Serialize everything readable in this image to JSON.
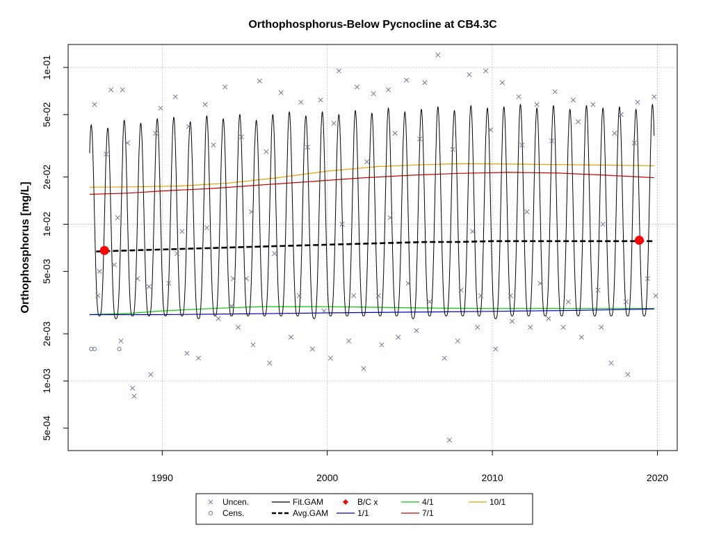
{
  "chart_data": {
    "type": "line",
    "title": "Orthophosphorus-Below Pycnocline at CB4.3C",
    "xlabel": "",
    "ylabel": "Orthophosphorus [mg/L]",
    "y_scale": "log10",
    "xlim": [
      1984.3,
      2021.2
    ],
    "ylim": [
      0.00036,
      0.14
    ],
    "x_ticks": [
      1990,
      2000,
      2010,
      2020
    ],
    "x_tick_labels": [
      "1990",
      "2000",
      "2010",
      "2020"
    ],
    "y_ticks": [
      0.0005,
      0.001,
      0.002,
      0.005,
      0.01,
      0.02,
      0.05,
      0.1
    ],
    "y_tick_labels": [
      "5e-04",
      "1e-03",
      "2e-03",
      "5e-03",
      "1e-02",
      "2e-02",
      "5e-02",
      "1e-01"
    ],
    "grid": true,
    "legend_position": "bottom",
    "legend": [
      {
        "label": "Uncen.",
        "symbol": "x",
        "color": "#6b7a99"
      },
      {
        "label": "Cens.",
        "symbol": "open-circle",
        "color": "#6b7a99"
      },
      {
        "label": "Fit.GAM",
        "symbol": "line",
        "color": "#000000"
      },
      {
        "label": "Avg.GAM",
        "symbol": "dashed-line",
        "color": "#000000"
      },
      {
        "label": "B/C x",
        "symbol": "diamond",
        "color": "#ff0000"
      },
      {
        "label": "1/1",
        "symbol": "line",
        "color": "#0000cc"
      },
      {
        "label": "4/1",
        "symbol": "line",
        "color": "#00cc00"
      },
      {
        "label": "7/1",
        "symbol": "line",
        "color": "#cc0000"
      },
      {
        "label": "10/1",
        "symbol": "line",
        "color": "#e69f00"
      }
    ],
    "series": {
      "fit_gam": {
        "years": [
          1985.6,
          2019.8
        ],
        "seasonal_peak": [
          0.043,
          0.041,
          0.046,
          0.044,
          0.047,
          0.048,
          0.045,
          0.049,
          0.047,
          0.05,
          0.046,
          0.05,
          0.052,
          0.049,
          0.052,
          0.05,
          0.053,
          0.051,
          0.055,
          0.052,
          0.054,
          0.056,
          0.053,
          0.057,
          0.055,
          0.056,
          0.058,
          0.055,
          0.057,
          0.054,
          0.057,
          0.055,
          0.056,
          0.054,
          0.058
        ],
        "seasonal_trough": [
          0.0026,
          0.0025,
          0.0026,
          0.0026,
          0.0026,
          0.0026,
          0.0025,
          0.0026,
          0.0026,
          0.0026,
          0.0026,
          0.0026,
          0.0026,
          0.0025,
          0.0026,
          0.0026,
          0.0026,
          0.0026,
          0.0026,
          0.0025,
          0.0026,
          0.0026,
          0.0026,
          0.0026,
          0.0025,
          0.0026,
          0.0026,
          0.0026,
          0.0026,
          0.0026,
          0.0026,
          0.0026,
          0.0026,
          0.0026,
          0.0026
        ]
      },
      "avg_gam": {
        "x": [
          1986,
          1988,
          1990,
          1992,
          1994,
          1996,
          1998,
          2000,
          2002,
          2004,
          2006,
          2008,
          2010,
          2012,
          2014,
          2016,
          2018,
          2019.8
        ],
        "y": [
          0.0067,
          0.0068,
          0.0069,
          0.007,
          0.0071,
          0.0072,
          0.0073,
          0.0074,
          0.0075,
          0.0076,
          0.0077,
          0.0077,
          0.0078,
          0.0078,
          0.0078,
          0.0078,
          0.0078,
          0.0078
        ]
      },
      "bc": {
        "x": [
          1986.5,
          2018.9
        ],
        "y": [
          0.0068,
          0.0079
        ]
      },
      "q1_1": {
        "x": [
          1985.6,
          1990,
          1995,
          2000,
          2005,
          2010,
          2015,
          2019.8
        ],
        "y": [
          0.00265,
          0.00265,
          0.00268,
          0.00272,
          0.00275,
          0.00278,
          0.00282,
          0.00288
        ]
      },
      "q4_1": {
        "x": [
          1985.6,
          1988,
          1990,
          1993,
          1996,
          2000,
          2003,
          2006,
          2010,
          2014,
          2017,
          2019.8
        ],
        "y": [
          0.00265,
          0.0027,
          0.0028,
          0.0029,
          0.00298,
          0.00298,
          0.00295,
          0.00292,
          0.0029,
          0.0029,
          0.0029,
          0.0029
        ]
      },
      "q7_1": {
        "x": [
          1985.6,
          1988,
          1990,
          1993,
          1996,
          1999,
          2002,
          2005,
          2008,
          2011,
          2014,
          2017,
          2019.8
        ],
        "y": [
          0.0155,
          0.0158,
          0.0163,
          0.0169,
          0.0178,
          0.0187,
          0.0197,
          0.0205,
          0.0211,
          0.0214,
          0.0212,
          0.0205,
          0.0198
        ]
      },
      "q10_1": {
        "x": [
          1985.6,
          1988,
          1991,
          1994,
          1997,
          2000,
          2003,
          2006,
          2008,
          2011,
          2014,
          2017,
          2019.8
        ],
        "y": [
          0.0172,
          0.0173,
          0.0175,
          0.0183,
          0.0198,
          0.0218,
          0.0233,
          0.024,
          0.0243,
          0.0242,
          0.024,
          0.0238,
          0.0236
        ]
      },
      "uncensored": {
        "x": [
          1985.9,
          1986.2,
          1986.9,
          1987.5,
          1987.6,
          1988.2,
          1988.5,
          1989.3,
          1989.9,
          1990.4,
          1990.8,
          1991.5,
          1992.2,
          1992.6,
          1993.4,
          1993.8,
          1994.2,
          1994.6,
          1995.5,
          1995.9,
          1996.5,
          1997.2,
          1997.8,
          1998.4,
          1999.1,
          1999.6,
          2000.2,
          2000.7,
          2001.3,
          2001.8,
          2002.2,
          2002.8,
          2003.3,
          2003.7,
          2004.3,
          2004.8,
          2005.4,
          2005.9,
          2006.7,
          2007.1,
          2007.4,
          2007.9,
          2008.6,
          2009.1,
          2009.6,
          2010.2,
          2010.6,
          2011.2,
          2011.6,
          2012.3,
          2012.7,
          2013.4,
          2013.8,
          2014.3,
          2014.9,
          2015.4,
          2016.1,
          2016.6,
          2017.2,
          2017.8,
          2018.2,
          2018.8,
          2019.4,
          2019.8,
          1986.1,
          1987.1,
          1988.3,
          1989.2,
          1990.9,
          1992.7,
          1994.3,
          1995.1,
          1996.8,
          1998.3,
          1999.8,
          2001.6,
          2003.1,
          2004.9,
          2006.2,
          2008.1,
          2009.3,
          2011.1,
          2012.9,
          2014.6,
          2016.4,
          2018.1,
          2019.9,
          1986.6,
          1987.9,
          1989.6,
          1991.6,
          1993.1,
          1994.8,
          1996.3,
          1998.8,
          2000.4,
          2002.4,
          2004.1,
          2005.6,
          2007.6,
          2009.9,
          2011.8,
          2013.6,
          2015.2,
          2017.4,
          2018.6,
          1987.3,
          1991.2,
          1995.4,
          2000.9,
          2003.8,
          2008.8,
          2012.1,
          2016.7
        ],
        "y": [
          0.058,
          0.005,
          0.072,
          0.0018,
          0.072,
          0.0009,
          0.0045,
          0.0011,
          0.055,
          0.0042,
          0.065,
          0.0015,
          0.0014,
          0.058,
          0.0025,
          0.075,
          0.003,
          0.0022,
          0.0017,
          0.082,
          0.0013,
          0.069,
          0.0019,
          0.06,
          0.0016,
          0.062,
          0.0014,
          0.095,
          0.0018,
          0.075,
          0.0012,
          0.068,
          0.0017,
          0.072,
          0.0019,
          0.083,
          0.0021,
          0.08,
          0.12,
          0.0014,
          0.00042,
          0.0018,
          0.09,
          0.0022,
          0.095,
          0.0016,
          0.08,
          0.0024,
          0.065,
          0.0022,
          0.058,
          0.0025,
          0.07,
          0.0022,
          0.062,
          0.0019,
          0.058,
          0.0022,
          0.0013,
          0.05,
          0.0011,
          0.06,
          0.0045,
          0.065,
          0.0035,
          0.0055,
          0.0008,
          0.004,
          0.0065,
          0.0095,
          0.0045,
          0.0045,
          0.0065,
          0.0035,
          0.0028,
          0.0035,
          0.0035,
          0.0042,
          0.0032,
          0.0038,
          0.0035,
          0.0035,
          0.0042,
          0.0032,
          0.0038,
          0.0032,
          0.0035,
          0.028,
          0.033,
          0.038,
          0.042,
          0.032,
          0.036,
          0.029,
          0.031,
          0.044,
          0.025,
          0.038,
          0.035,
          0.03,
          0.04,
          0.032,
          0.034,
          0.045,
          0.038,
          0.033,
          0.011,
          0.009,
          0.012,
          0.01,
          0.011,
          0.009,
          0.012,
          0.01
        ]
      },
      "censored": {
        "x": [
          1985.7,
          1985.9,
          1987.4
        ],
        "y": [
          0.0016,
          0.0016,
          0.0016
        ]
      }
    }
  }
}
